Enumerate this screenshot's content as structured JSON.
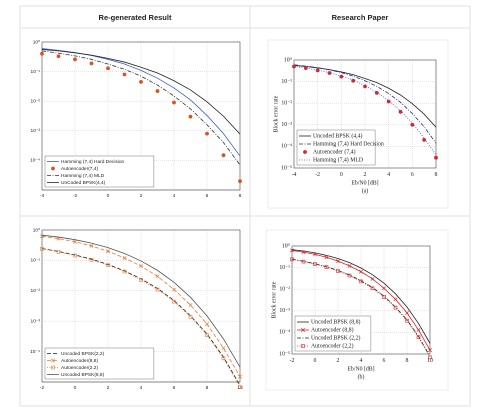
{
  "header": {
    "left": "Re-generated Result",
    "right": "Research Paper"
  },
  "chart_data": [
    {
      "type": "line",
      "log_y": true,
      "grid": true,
      "legend": "lower left",
      "x": [
        -4,
        -3,
        -2,
        -1,
        0,
        1,
        2,
        3,
        4,
        5,
        6,
        7,
        8
      ],
      "xlim": [
        -4,
        8
      ],
      "xticks": [
        -4,
        -2,
        0,
        2,
        4,
        6,
        8
      ],
      "ylim": [
        1e-05,
        1
      ],
      "yticks": [
        {
          "value": 1,
          "label": "10⁰"
        },
        {
          "value": 0.1,
          "label": "10⁻¹"
        },
        {
          "value": 0.01,
          "label": "10⁻²"
        },
        {
          "value": 0.001,
          "label": "10⁻³"
        },
        {
          "value": 0.0001,
          "label": "10⁻⁴"
        }
      ],
      "series": [
        {
          "name": "Hamming (7,4) Hard Decision",
          "color": "#3a5fcd",
          "dash": "solid",
          "marker": null,
          "values": [
            0.6,
            0.52,
            0.44,
            0.35,
            0.26,
            0.18,
            0.11,
            0.06,
            0.028,
            0.011,
            0.0033,
            0.0008,
            0.00014
          ]
        },
        {
          "name": "Autoencoder(7,4)",
          "color": "#d9531e",
          "dash": "none",
          "marker": "o",
          "values": [
            0.4,
            0.33,
            0.26,
            0.19,
            0.13,
            0.08,
            0.045,
            0.022,
            0.009,
            0.003,
            0.0008,
            0.00015,
            2e-05
          ]
        },
        {
          "name": "Hamming (7,4) MLD",
          "color": "#333333",
          "dash": "dashdot",
          "marker": null,
          "values": [
            0.5,
            0.42,
            0.34,
            0.26,
            0.18,
            0.12,
            0.07,
            0.035,
            0.015,
            0.0055,
            0.0016,
            0.0004,
            7e-05
          ]
        },
        {
          "name": "UnCoded BPSK(4,4)",
          "color": "#222222",
          "dash": "solid",
          "marker": null,
          "values": [
            0.56,
            0.5,
            0.43,
            0.36,
            0.28,
            0.21,
            0.14,
            0.09,
            0.049,
            0.024,
            0.0095,
            0.0031,
            0.00077
          ]
        }
      ]
    },
    {
      "type": "line",
      "log_y": true,
      "grid": true,
      "legend": "lower left",
      "ylabel": "Block error rate",
      "xlabel": "Eb/N0 [dB]",
      "caption": "(a)",
      "x": [
        -4,
        -3,
        -2,
        -1,
        0,
        1,
        2,
        3,
        4,
        5,
        6,
        7,
        8
      ],
      "xlim": [
        -4,
        8
      ],
      "xticks": [
        -4,
        -2,
        0,
        2,
        4,
        6,
        8
      ],
      "ylim": [
        1e-05,
        1
      ],
      "yticks": [
        {
          "value": 1,
          "label": "10⁰"
        },
        {
          "value": 0.1,
          "label": "10⁻¹"
        },
        {
          "value": 0.01,
          "label": "10⁻²"
        },
        {
          "value": 0.001,
          "label": "10⁻³"
        },
        {
          "value": 0.0001,
          "label": "10⁻⁴"
        },
        {
          "value": 1e-05,
          "label": "10⁻⁵"
        }
      ],
      "series": [
        {
          "name": "Uncoded BPSK (4,4)",
          "color": "#222222",
          "dash": "solid",
          "marker": null,
          "values": [
            0.56,
            0.5,
            0.43,
            0.36,
            0.28,
            0.21,
            0.14,
            0.09,
            0.049,
            0.024,
            0.0095,
            0.0031,
            0.00077
          ]
        },
        {
          "name": "Hamming (7,4) Hard Decision",
          "color": "#1f2a8a",
          "dash": "dashdot",
          "marker": null,
          "values": [
            0.6,
            0.52,
            0.44,
            0.35,
            0.26,
            0.18,
            0.11,
            0.06,
            0.028,
            0.011,
            0.0033,
            0.0008,
            0.00014
          ]
        },
        {
          "name": "Autoencoder (7,4)",
          "color": "#d62728",
          "dash": "none",
          "marker": "o",
          "values": [
            0.5,
            0.42,
            0.33,
            0.25,
            0.17,
            0.11,
            0.06,
            0.03,
            0.012,
            0.004,
            0.001,
            0.0002,
            3e-05
          ]
        },
        {
          "name": "Hamming (7,4) MLD",
          "color": "#4a5bd6",
          "dash": "dotted",
          "marker": null,
          "values": [
            0.5,
            0.42,
            0.34,
            0.26,
            0.18,
            0.12,
            0.065,
            0.032,
            0.013,
            0.0045,
            0.0012,
            0.00024,
            4e-05
          ]
        }
      ]
    },
    {
      "type": "line",
      "log_y": true,
      "grid": true,
      "legend": "lower left",
      "x": [
        -2,
        -1,
        0,
        1,
        2,
        3,
        4,
        5,
        6,
        7,
        8,
        9,
        10
      ],
      "xlim": [
        -2,
        10
      ],
      "xticks": [
        -2,
        0,
        2,
        4,
        6,
        8,
        10
      ],
      "ylim": [
        1e-05,
        1
      ],
      "yticks": [
        {
          "value": 1,
          "label": "10⁰"
        },
        {
          "value": 0.1,
          "label": "10⁻¹"
        },
        {
          "value": 0.01,
          "label": "10⁻²"
        },
        {
          "value": 0.001,
          "label": "10⁻³"
        },
        {
          "value": 0.0001,
          "label": "10⁻⁴"
        }
      ],
      "series": [
        {
          "name": "Uncoded BPSK(2,2)",
          "color": "#222222",
          "dash": "dashed",
          "marker": null,
          "values": [
            0.245,
            0.197,
            0.151,
            0.11,
            0.0736,
            0.0453,
            0.0248,
            0.012,
            0.0048,
            0.0015,
            0.00038,
            6.6e-05,
            7.8e-06
          ]
        },
        {
          "name": "Autoencoder(8,8)",
          "color": "#e07b39",
          "dash": "dashed",
          "marker": "x",
          "values": [
            0.62,
            0.52,
            0.41,
            0.3,
            0.2,
            0.12,
            0.065,
            0.03,
            0.011,
            0.0034,
            0.0008,
            0.00013,
            1.5e-05
          ]
        },
        {
          "name": "Autoencoder(2,2)",
          "color": "#e07b39",
          "dash": "dotted",
          "marker": "s",
          "values": [
            0.24,
            0.19,
            0.145,
            0.105,
            0.07,
            0.043,
            0.023,
            0.011,
            0.0044,
            0.0014,
            0.00035,
            6e-05,
            7e-06
          ]
        },
        {
          "name": "Uncoded BPSK(8,8)",
          "color": "#555555",
          "dash": "solid",
          "marker": null,
          "values": [
            0.675,
            0.585,
            0.48,
            0.37,
            0.263,
            0.169,
            0.096,
            0.047,
            0.019,
            0.0061,
            0.0015,
            0.00026,
            3.1e-05
          ]
        }
      ]
    },
    {
      "type": "line",
      "log_y": true,
      "grid": true,
      "legend": "lower left",
      "ylabel": "Block error rate",
      "xlabel": "Eb/N0 [dB]",
      "caption": "(b)",
      "x": [
        -2,
        -1,
        0,
        1,
        2,
        3,
        4,
        5,
        6,
        7,
        8,
        9,
        10
      ],
      "xlim": [
        -2,
        10
      ],
      "xticks": [
        -2,
        0,
        2,
        4,
        6,
        8,
        10
      ],
      "ylim": [
        1e-05,
        1
      ],
      "yticks": [
        {
          "value": 1,
          "label": "10⁰"
        },
        {
          "value": 0.1,
          "label": "10⁻¹"
        },
        {
          "value": 0.01,
          "label": "10⁻²"
        },
        {
          "value": 0.001,
          "label": "10⁻³"
        },
        {
          "value": 0.0001,
          "label": "10⁻⁴"
        },
        {
          "value": 1e-05,
          "label": "10⁻⁵"
        }
      ],
      "series": [
        {
          "name": "Uncoded BPSK (8,8)",
          "color": "#222222",
          "dash": "solid",
          "marker": null,
          "values": [
            0.675,
            0.585,
            0.48,
            0.37,
            0.263,
            0.169,
            0.096,
            0.047,
            0.019,
            0.0061,
            0.0015,
            0.00026,
            3.1e-05
          ]
        },
        {
          "name": "Autoencoder (8,8)",
          "color": "#d62728",
          "dash": "solid",
          "marker": "x",
          "values": [
            0.62,
            0.52,
            0.41,
            0.3,
            0.2,
            0.12,
            0.065,
            0.03,
            0.011,
            0.0034,
            0.0008,
            0.00013,
            1.5e-05
          ]
        },
        {
          "name": "Uncoded BPSK (2,2)",
          "color": "#222222",
          "dash": "dashdot",
          "marker": null,
          "values": [
            0.245,
            0.197,
            0.151,
            0.11,
            0.0736,
            0.0453,
            0.0248,
            0.012,
            0.0048,
            0.0015,
            0.00038,
            6.6e-05,
            7.8e-06
          ]
        },
        {
          "name": "Autoencoder (2,2)",
          "color": "#d62728",
          "dash": "dotted",
          "marker": "s",
          "values": [
            0.24,
            0.19,
            0.145,
            0.105,
            0.07,
            0.043,
            0.023,
            0.011,
            0.0044,
            0.0014,
            0.00035,
            6e-05,
            7e-06
          ]
        }
      ]
    }
  ]
}
